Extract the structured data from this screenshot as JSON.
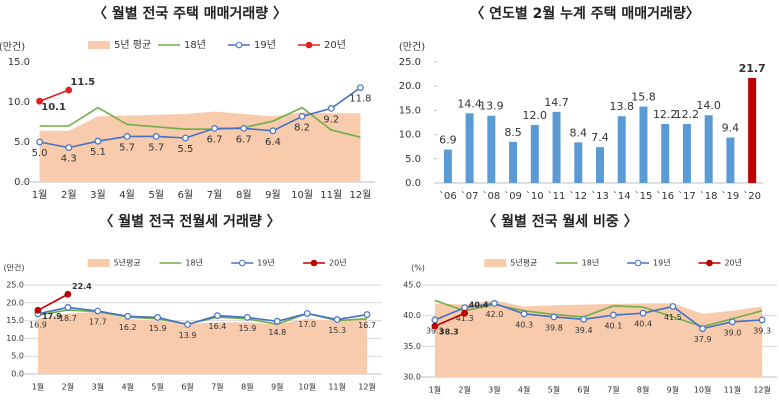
{
  "chart_data": [
    {
      "type": "line",
      "title": "〈 월별 전국 주택 매매거래량 〉",
      "y_label": "(만건)",
      "categories": [
        "1월",
        "2월",
        "3월",
        "4월",
        "5월",
        "6월",
        "7월",
        "8월",
        "9월",
        "10월",
        "11월",
        "12월"
      ],
      "ylim": [
        0,
        15
      ],
      "yticks": [
        {
          "value": 0,
          "label": "0.0"
        },
        {
          "value": 5,
          "label": "5.0"
        },
        {
          "value": 10,
          "label": "10.0"
        },
        {
          "value": 15,
          "label": "15.0"
        }
      ],
      "grid": false,
      "series": [
        {
          "name": "5년 평균",
          "kind": "area",
          "color": "#f8cbad",
          "values": [
            6.4,
            6.4,
            8.2,
            8.3,
            8.4,
            8.5,
            8.8,
            8.5,
            8.2,
            8.7,
            8.6,
            8.6
          ]
        },
        {
          "name": "18년",
          "kind": "line",
          "color": "#70ad47",
          "values": [
            7.0,
            7.0,
            9.3,
            7.2,
            6.9,
            6.6,
            6.6,
            6.8,
            7.6,
            9.3,
            6.5,
            5.6
          ]
        },
        {
          "name": "19년",
          "kind": "line",
          "marker": "open",
          "color": "#4472c4",
          "values": [
            5.0,
            4.3,
            5.1,
            5.7,
            5.7,
            5.5,
            6.7,
            6.7,
            6.4,
            8.2,
            9.2,
            11.8
          ],
          "value_labels": [
            "5.0",
            "4.3",
            "5.1",
            "5.7",
            "5.7",
            "5.5",
            "6.7",
            "6.7",
            "6.4",
            "8.2",
            "9.2",
            "11.8"
          ]
        },
        {
          "name": "20년",
          "kind": "line",
          "marker": "filled",
          "color": "#e0201c",
          "values": [
            10.1,
            11.5,
            null,
            null,
            null,
            null,
            null,
            null,
            null,
            null,
            null,
            null
          ],
          "value_labels": [
            "10.1",
            "11.5",
            null,
            null,
            null,
            null,
            null,
            null,
            null,
            null,
            null,
            null
          ]
        }
      ]
    },
    {
      "type": "bar",
      "title": "〈 연도별 2월 누계 주택 매매거래량〉",
      "y_label": "(만건)",
      "categories": [
        "`06",
        "`07",
        "`08",
        "`09",
        "`10",
        "`11",
        "`12",
        "`13",
        "`14",
        "`15",
        "`16",
        "`17",
        "`18",
        "`19",
        "`20"
      ],
      "values": [
        6.9,
        14.4,
        13.9,
        8.5,
        12.0,
        14.7,
        8.4,
        7.4,
        13.8,
        15.8,
        12.2,
        12.2,
        14.0,
        9.4,
        21.7
      ],
      "value_labels": [
        "6.9",
        "14.4",
        "13.9",
        "8.5",
        "12.0",
        "14.7",
        "8.4",
        "7.4",
        "13.8",
        "15.8",
        "12.2",
        "12.2",
        "14.0",
        "9.4",
        "21.7"
      ],
      "colors": [
        "#5b9bd5",
        "#5b9bd5",
        "#5b9bd5",
        "#5b9bd5",
        "#5b9bd5",
        "#5b9bd5",
        "#5b9bd5",
        "#5b9bd5",
        "#5b9bd5",
        "#5b9bd5",
        "#5b9bd5",
        "#5b9bd5",
        "#5b9bd5",
        "#5b9bd5",
        "#c00000"
      ],
      "ylim": [
        0,
        25
      ],
      "yticks": [
        {
          "value": 0,
          "label": "0.0"
        },
        {
          "value": 5,
          "label": "5.0"
        },
        {
          "value": 10,
          "label": "10.0"
        },
        {
          "value": 15,
          "label": "15.0"
        },
        {
          "value": 20,
          "label": "20.0"
        },
        {
          "value": 25,
          "label": "25.0"
        }
      ],
      "grid": false
    },
    {
      "type": "line",
      "title": "〈 월별 전국 전월세 거래량 〉",
      "y_label": "(만건)",
      "categories": [
        "1월",
        "2월",
        "3월",
        "4월",
        "5월",
        "6월",
        "7월",
        "8월",
        "9월",
        "10월",
        "11월",
        "12월"
      ],
      "ylim": [
        0,
        25
      ],
      "yticks": [
        {
          "value": 0,
          "label": "0.0"
        },
        {
          "value": 5,
          "label": "5.0"
        },
        {
          "value": 10,
          "label": "10.0"
        },
        {
          "value": 15,
          "label": "15.0"
        },
        {
          "value": 20,
          "label": "20.0"
        },
        {
          "value": 25,
          "label": "25.0"
        }
      ],
      "grid": true,
      "series": [
        {
          "name": "5년평균",
          "kind": "area",
          "color": "#f8cbad",
          "values": [
            15.5,
            17.0,
            17.5,
            15.5,
            15.0,
            14.0,
            14.5,
            14.5,
            14.0,
            15.5,
            15.0,
            15.5
          ]
        },
        {
          "name": "18년",
          "kind": "line",
          "color": "#70ad47",
          "values": [
            16.5,
            18.0,
            17.5,
            16.0,
            15.5,
            14.0,
            16.0,
            15.5,
            14.0,
            17.0,
            15.0,
            15.5
          ]
        },
        {
          "name": "19년",
          "kind": "line",
          "marker": "open",
          "color": "#4472c4",
          "values": [
            16.9,
            18.7,
            17.7,
            16.2,
            15.9,
            13.9,
            16.4,
            15.9,
            14.8,
            17.0,
            15.3,
            16.7
          ],
          "value_labels": [
            "16.9",
            "18.7",
            "17.7",
            "16.2",
            "15.9",
            "13.9",
            "16.4",
            "15.9",
            "14.8",
            "17.0",
            "15.3",
            "16.7"
          ]
        },
        {
          "name": "20년",
          "kind": "line",
          "marker": "filled",
          "color": "#c00000",
          "values": [
            17.9,
            22.4,
            null,
            null,
            null,
            null,
            null,
            null,
            null,
            null,
            null,
            null
          ],
          "value_labels": [
            "17.9",
            "22.4",
            null,
            null,
            null,
            null,
            null,
            null,
            null,
            null,
            null,
            null
          ]
        }
      ]
    },
    {
      "type": "line",
      "title": "〈 월별 전국 월세 비중 〉",
      "y_label": "(%)",
      "categories": [
        "1월",
        "2월",
        "3월",
        "4월",
        "5월",
        "6월",
        "7월",
        "8월",
        "9월",
        "10월",
        "11월",
        "12월"
      ],
      "ylim": [
        30,
        45
      ],
      "yticks": [
        {
          "value": 30,
          "label": "30.0"
        },
        {
          "value": 35,
          "label": "35.0"
        },
        {
          "value": 40,
          "label": "40.0"
        },
        {
          "value": 45,
          "label": "45.0"
        }
      ],
      "grid": true,
      "series": [
        {
          "name": "5년평균",
          "kind": "area",
          "color": "#f8cbad",
          "values": [
            42.0,
            41.8,
            42.5,
            41.5,
            41.7,
            41.8,
            41.9,
            42.0,
            42.0,
            40.3,
            40.8,
            41.5
          ]
        },
        {
          "name": "18년",
          "kind": "line",
          "color": "#70ad47",
          "values": [
            42.5,
            40.8,
            41.8,
            40.8,
            40.2,
            39.8,
            41.6,
            41.4,
            39.8,
            38.2,
            39.5,
            40.8
          ]
        },
        {
          "name": "19년",
          "kind": "line",
          "marker": "open",
          "color": "#4472c4",
          "values": [
            39.3,
            41.3,
            42.0,
            40.3,
            39.8,
            39.4,
            40.1,
            40.4,
            41.5,
            37.9,
            39.0,
            39.3
          ],
          "value_labels": [
            "39.3",
            "41.3",
            "42.0",
            "40.3",
            "39.8",
            "39.4",
            "40.1",
            "40.4",
            "41.5",
            "37.9",
            "39.0",
            "39.3"
          ]
        },
        {
          "name": "20년",
          "kind": "line",
          "marker": "filled",
          "color": "#c00000",
          "values": [
            38.3,
            40.4,
            null,
            null,
            null,
            null,
            null,
            null,
            null,
            null,
            null,
            null
          ],
          "value_labels": [
            "38.3",
            "40.4",
            null,
            null,
            null,
            null,
            null,
            null,
            null,
            null,
            null,
            null
          ]
        }
      ]
    }
  ]
}
